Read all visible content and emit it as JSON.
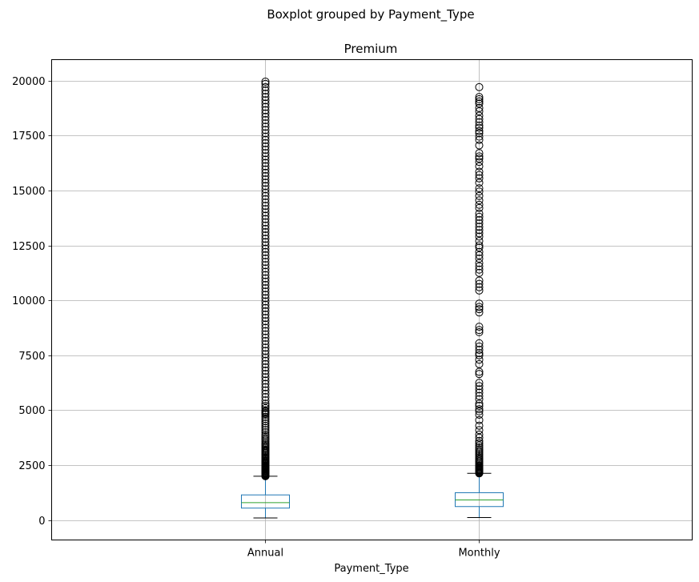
{
  "chart_data": {
    "type": "boxplot",
    "suptitle": "Boxplot grouped by Payment_Type",
    "title": "Premium",
    "xlabel": "Payment_Type",
    "ylabel": "",
    "grid": true,
    "ylim": [
      -900,
      20950
    ],
    "yticks": [
      0,
      2500,
      5000,
      7500,
      10000,
      12500,
      15000,
      17500,
      20000
    ],
    "categories": [
      "Annual",
      "Monthly"
    ],
    "boxes": [
      {
        "category": "Annual",
        "whisker_low": 100,
        "q1": 550,
        "median": 800,
        "q3": 1150,
        "whisker_high": 2000,
        "outliers": [
          2000,
          2020,
          2040,
          2060,
          2080,
          2100,
          2120,
          2140,
          2160,
          2180,
          2200,
          2230,
          2260,
          2290,
          2320,
          2350,
          2380,
          2410,
          2440,
          2470,
          2500,
          2540,
          2580,
          2620,
          2660,
          2700,
          2750,
          2800,
          2850,
          2900,
          2950,
          3000,
          3050,
          3100,
          3150,
          3200,
          3260,
          3320,
          3380,
          3440,
          3500,
          3580,
          3660,
          3740,
          3820,
          3900,
          4000,
          4100,
          4200,
          4300,
          4400,
          4500,
          4600,
          4700,
          4800,
          4850,
          4900,
          4950,
          5000,
          5100,
          5200,
          5300,
          5450,
          5600,
          5750,
          5900,
          6050,
          6200,
          6350,
          6500,
          6650,
          6800,
          6950,
          7100,
          7250,
          7400,
          7550,
          7700,
          7850,
          8000,
          8150,
          8300,
          8450,
          8600,
          8750,
          8900,
          9050,
          9200,
          9350,
          9500,
          9650,
          9800,
          9950,
          10100,
          10250,
          10400,
          10550,
          10700,
          10850,
          11000,
          11150,
          11300,
          11450,
          11600,
          11750,
          11900,
          12050,
          12200,
          12350,
          12500,
          12650,
          12800,
          12950,
          13100,
          13250,
          13400,
          13550,
          13700,
          13850,
          14000,
          14150,
          14300,
          14450,
          14600,
          14750,
          14900,
          15050,
          15200,
          15350,
          15500,
          15650,
          15800,
          15950,
          16100,
          16250,
          16400,
          16550,
          16700,
          16850,
          17000,
          17150,
          17300,
          17450,
          17600,
          17750,
          17900,
          18050,
          18200,
          18350,
          18500,
          18650,
          18800,
          18950,
          19100,
          19250,
          19400,
          19550,
          19700,
          19850,
          19950
        ]
      },
      {
        "category": "Monthly",
        "whisker_low": 120,
        "q1": 620,
        "median": 920,
        "q3": 1250,
        "whisker_high": 2130,
        "outliers": [
          2130,
          2160,
          2190,
          2220,
          2250,
          2280,
          2310,
          2340,
          2380,
          2420,
          2460,
          2500,
          2560,
          2620,
          2680,
          2740,
          2800,
          2870,
          2940,
          3010,
          3080,
          3150,
          3230,
          3310,
          3400,
          3500,
          3600,
          3750,
          3900,
          4100,
          4300,
          4550,
          4800,
          4950,
          5050,
          5200,
          5300,
          5500,
          5650,
          5800,
          5950,
          6100,
          6250,
          6650,
          6750,
          7100,
          7300,
          7500,
          7600,
          7750,
          7900,
          8050,
          8550,
          8650,
          8800,
          9450,
          9600,
          9700,
          9850,
          10450,
          10600,
          10750,
          10900,
          11250,
          11400,
          11550,
          11700,
          11900,
          12050,
          12200,
          12400,
          12500,
          12700,
          12900,
          13050,
          13200,
          13350,
          13500,
          13650,
          13800,
          13950,
          14200,
          14350,
          14550,
          14750,
          14950,
          15100,
          15350,
          15550,
          15700,
          15850,
          16100,
          16300,
          16450,
          16550,
          16700,
          17050,
          17300,
          17450,
          17600,
          17700,
          17850,
          17950,
          18100,
          18250,
          18400,
          18600,
          18750,
          18950,
          19050,
          19150,
          19250,
          19700
        ]
      }
    ]
  }
}
